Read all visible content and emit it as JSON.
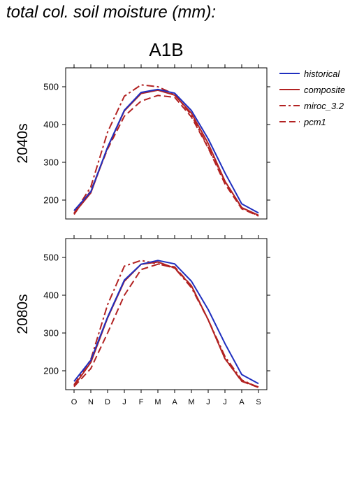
{
  "figure": {
    "title": "total col. soil moisture (mm):"
  },
  "chart_data": {
    "type": "line",
    "scenario": "A1B",
    "x": [
      "O",
      "N",
      "D",
      "J",
      "F",
      "M",
      "A",
      "M",
      "J",
      "J",
      "A",
      "S"
    ],
    "ylim": [
      150,
      550
    ],
    "yticks": [
      200,
      300,
      400,
      500
    ],
    "grid": false,
    "legend_position": "right",
    "legend": [
      {
        "name": "historical",
        "color": "#1f2fbf",
        "dash": "solid"
      },
      {
        "name": "composite",
        "color": "#b22222",
        "dash": "solid"
      },
      {
        "name": "miroc_3.2",
        "color": "#b22222",
        "dash": "dashdot"
      },
      {
        "name": "pcm1",
        "color": "#b22222",
        "dash": "dashed"
      }
    ],
    "panels": [
      {
        "row_label": "2040s",
        "series": [
          {
            "name": "historical",
            "values": [
              172,
              222,
              340,
              438,
              485,
              493,
              483,
              437,
              362,
              272,
              190,
              166
            ]
          },
          {
            "name": "composite",
            "values": [
              165,
              219,
              339,
              436,
              482,
              491,
              478,
              430,
              350,
              250,
              180,
              160
            ]
          },
          {
            "name": "miroc_3.2",
            "values": [
              165,
              235,
              380,
              475,
              505,
              500,
              480,
              425,
              340,
              250,
              180,
              158
            ]
          },
          {
            "name": "pcm1",
            "values": [
              162,
              225,
              335,
              422,
              462,
              477,
              472,
              420,
              338,
              243,
              177,
              158
            ]
          }
        ]
      },
      {
        "row_label": "2080s",
        "series": [
          {
            "name": "historical",
            "values": [
              172,
              228,
              342,
              440,
              482,
              492,
              483,
              437,
              362,
              272,
              190,
              166
            ]
          },
          {
            "name": "composite",
            "values": [
              160,
              222,
              340,
              437,
              482,
              488,
              472,
              425,
              335,
              232,
              173,
              157
            ]
          },
          {
            "name": "miroc_3.2",
            "values": [
              163,
              230,
              375,
              477,
              492,
              483,
              472,
              420,
              335,
              238,
              176,
              156
            ]
          },
          {
            "name": "pcm1",
            "values": [
              158,
              206,
              300,
              400,
              468,
              482,
              475,
              425,
              335,
              232,
              172,
              156
            ]
          }
        ]
      }
    ]
  }
}
